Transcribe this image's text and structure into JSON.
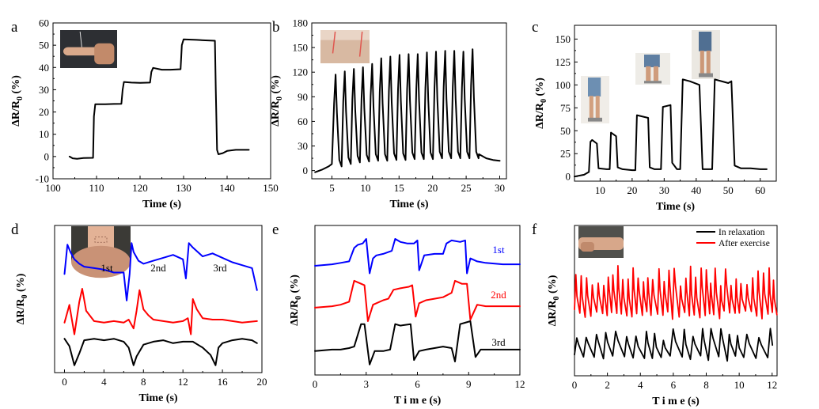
{
  "chart_data": [
    {
      "panel": "a",
      "type": "line",
      "xlabel": "Time (s)",
      "ylabel": "ΔR/R0 (%)",
      "xlim": [
        100,
        150
      ],
      "ylim": [
        -10,
        60
      ],
      "xticks": [
        100,
        110,
        120,
        130,
        140,
        150
      ],
      "yticks": [
        -10,
        0,
        10,
        20,
        30,
        40,
        50,
        60
      ],
      "grid": false,
      "inset_photo": "finger",
      "series": [
        {
          "color": "#000000",
          "x": [
            103.8,
            104.5,
            105.5,
            107,
            109.2,
            109.4,
            109.7,
            112,
            114,
            115.7,
            116,
            116.3,
            118,
            120,
            122.3,
            122.6,
            123,
            125,
            127,
            129.3,
            129.6,
            130,
            133,
            135,
            137.2,
            137.4,
            137.7,
            138,
            139,
            140,
            142,
            145
          ],
          "y": [
            0,
            -0.8,
            -1,
            -0.7,
            -0.6,
            18,
            23.5,
            23.5,
            23.6,
            23.7,
            30,
            33.5,
            33.2,
            33.1,
            33.2,
            38,
            39.8,
            39,
            39,
            39.2,
            50,
            52.6,
            52.4,
            52.2,
            52,
            30,
            3,
            1,
            1.5,
            2.5,
            3,
            3
          ]
        }
      ]
    },
    {
      "panel": "b",
      "type": "line",
      "xlabel": "Time (s)",
      "ylabel": "ΔR/R0 (%)",
      "xlim": [
        2,
        31
      ],
      "ylim": [
        -10,
        180
      ],
      "xticks": [
        5,
        10,
        15,
        20,
        25,
        30
      ],
      "yticks": [
        0,
        30,
        60,
        90,
        120,
        150,
        180
      ],
      "grid": false,
      "inset_photo": "wrist",
      "baseline": {
        "x": [
          2.5,
          3.5,
          4.5,
          5.0
        ],
        "y": [
          -2,
          1,
          5,
          8
        ]
      },
      "peaks": {
        "x": [
          5.55,
          6.91,
          8.27,
          9.63,
          10.99,
          12.35,
          13.71,
          15.07,
          16.43,
          17.79,
          19.15,
          20.51,
          21.87,
          23.23,
          24.59,
          25.95
        ],
        "y": [
          117,
          121,
          124,
          126,
          130,
          137,
          139,
          141,
          142,
          142,
          144,
          145,
          146,
          146,
          145,
          148
        ]
      },
      "troughs": [
        5,
        8,
        10,
        11,
        12,
        12,
        13,
        13,
        14,
        14,
        14,
        15,
        15,
        15,
        15,
        15
      ],
      "tail": {
        "x": [
          26.9,
          28,
          29,
          30
        ],
        "y": [
          20,
          15,
          13,
          12
        ]
      }
    },
    {
      "panel": "c",
      "type": "line",
      "xlabel": "Time (s)",
      "ylabel": "ΔR/R0 (%)",
      "xlim": [
        2,
        65
      ],
      "ylim": [
        -5,
        165
      ],
      "xticks": [
        10,
        20,
        30,
        40,
        50,
        60
      ],
      "yticks": [
        0,
        25,
        50,
        75,
        100,
        125,
        150
      ],
      "grid": false,
      "inset_photos": [
        "knee-bend-small",
        "knee-bend-medium",
        "knee-bend-large"
      ],
      "series": [
        {
          "color": "#000000",
          "x": [
            2,
            5,
            6.5,
            7,
            7.5,
            9,
            9.5,
            12,
            13,
            13.4,
            15,
            15.5,
            17,
            20,
            21,
            21.5,
            25,
            25.5,
            27,
            29,
            29.6,
            32,
            32.5,
            34,
            35,
            35.8,
            38,
            41,
            42,
            44,
            45,
            45.8,
            50,
            51,
            52,
            54,
            57,
            60,
            62
          ],
          "y": [
            0,
            2,
            5,
            38,
            40,
            36,
            9,
            8,
            8,
            48,
            44,
            10,
            8,
            7,
            7,
            67,
            64,
            10,
            8,
            8,
            76,
            78,
            15,
            8,
            8,
            106,
            104,
            100,
            8,
            8,
            8,
            106,
            102,
            104,
            12,
            9,
            9,
            8,
            8
          ]
        }
      ]
    },
    {
      "panel": "d",
      "type": "line",
      "xlabel": "Time (s)",
      "ylabel": "ΔR/R0 (%)",
      "xlim": [
        -1,
        20
      ],
      "ylim": [
        0,
        10
      ],
      "xticks": [
        0,
        4,
        8,
        12,
        16,
        20
      ],
      "yticks": [],
      "grid": false,
      "inset_photo": "throat",
      "annotations": [
        "1st",
        "2nd",
        "3rd"
      ],
      "series": [
        {
          "color": "#0000ff",
          "offset": 6.2,
          "x": [
            0,
            0.3,
            0.6,
            1,
            1.5,
            2,
            3,
            4,
            5,
            6,
            6.3,
            6.6,
            6.8,
            7,
            7.5,
            8,
            9,
            10,
            11,
            12,
            12.3,
            12.6,
            13,
            14,
            15,
            16,
            17,
            18,
            19,
            19.5
          ],
          "y": [
            0.5,
            2.5,
            2.0,
            1.5,
            1.2,
            1.0,
            0.9,
            0.8,
            0.6,
            0.6,
            -1.3,
            0.5,
            2.6,
            2.0,
            1.4,
            1.2,
            1.4,
            1.6,
            1.8,
            1.5,
            0.2,
            2.6,
            2.3,
            1.7,
            1.9,
            1.6,
            1.3,
            1.1,
            0.9,
            -0.6
          ]
        },
        {
          "color": "#ff0000",
          "offset": 3.4,
          "x": [
            0,
            0.5,
            1,
            1.5,
            1.8,
            2.2,
            3,
            4,
            5,
            6,
            6.5,
            7,
            7.3,
            7.6,
            8,
            8.5,
            9,
            10,
            11,
            12,
            12.5,
            12.8,
            13,
            13.4,
            14,
            15,
            16,
            17,
            18,
            19.5
          ],
          "y": [
            0,
            1.2,
            -0.8,
            1.4,
            2.3,
            0.8,
            0.1,
            0,
            0.1,
            0,
            0.2,
            -0.4,
            0.8,
            2.2,
            0.9,
            0.5,
            0.2,
            0.1,
            0,
            0.1,
            0.3,
            -0.8,
            1.6,
            0.9,
            0.3,
            0.2,
            0.2,
            0.1,
            0,
            0.1
          ]
        },
        {
          "color": "#000000",
          "offset": 1.5,
          "x": [
            0,
            0.5,
            1,
            1.5,
            2,
            3,
            4,
            5,
            6,
            6.5,
            7,
            7.3,
            8,
            9,
            10,
            11,
            12,
            13,
            14,
            14.8,
            15.3,
            15.6,
            16,
            17,
            18,
            19,
            19.5
          ],
          "y": [
            0.8,
            0.3,
            -1.0,
            -0.2,
            0.7,
            0.8,
            0.7,
            0.8,
            0.6,
            0.2,
            -1.0,
            -0.4,
            0.4,
            0.6,
            0.7,
            0.5,
            0.6,
            0.6,
            0.2,
            -0.3,
            -1.0,
            0.2,
            0.5,
            0.7,
            0.8,
            0.7,
            0.5
          ]
        }
      ]
    },
    {
      "panel": "e",
      "type": "line",
      "xlabel": "T i m e  (s)",
      "ylabel": "ΔR/R0 (%)",
      "xlim": [
        0,
        12
      ],
      "ylim": [
        0,
        10
      ],
      "xticks": [
        0,
        3,
        6,
        9,
        12
      ],
      "yticks": [],
      "grid": false,
      "annotations": [
        "1st",
        "2nd",
        "3rd"
      ],
      "series": [
        {
          "color": "#0000ff",
          "offset": 7.3,
          "x": [
            0,
            1,
            1.5,
            2,
            2.3,
            2.5,
            2.8,
            3.0,
            3.2,
            3.4,
            3.6,
            4,
            4.5,
            4.7,
            5,
            5.4,
            5.8,
            6.0,
            6.1,
            6.4,
            7,
            7.5,
            7.7,
            8,
            8.5,
            8.8,
            8.9,
            9.1,
            9.5,
            10,
            11,
            12
          ],
          "y": [
            0,
            0.1,
            0.2,
            0.3,
            1.2,
            1.4,
            1.5,
            1.8,
            -0.5,
            0.5,
            0.7,
            0.8,
            1.0,
            1.8,
            1.6,
            1.5,
            1.5,
            1.7,
            -0.3,
            0.7,
            0.8,
            0.8,
            1.5,
            1.7,
            1.6,
            1.7,
            -0.5,
            0.5,
            0.3,
            0.2,
            0.1,
            0.1
          ]
        },
        {
          "color": "#ff0000",
          "offset": 4.5,
          "x": [
            0,
            1,
            1.5,
            2,
            2.3,
            2.7,
            2.9,
            3.1,
            3.4,
            4,
            4.3,
            4.6,
            5,
            5.5,
            5.7,
            5.9,
            6.1,
            6.5,
            7,
            7.5,
            8,
            8.2,
            8.6,
            8.9,
            9.1,
            9.5,
            10,
            11,
            12
          ],
          "y": [
            0,
            0.1,
            0.2,
            0.4,
            1.8,
            1.6,
            1.5,
            -0.9,
            0.2,
            0.5,
            0.6,
            1.2,
            1.3,
            1.4,
            1.5,
            -0.6,
            0.3,
            0.5,
            0.6,
            0.7,
            1.0,
            1.8,
            1.6,
            1.6,
            -0.8,
            0.2,
            0.1,
            0.1,
            0.1
          ]
        },
        {
          "color": "#000000",
          "offset": 1.6,
          "x": [
            0,
            1,
            1.5,
            2,
            2.3,
            2.7,
            2.9,
            3.2,
            3.5,
            4,
            4.4,
            4.7,
            5,
            5.6,
            5.8,
            6.1,
            6.5,
            7.0,
            7.5,
            8,
            8.2,
            8.5,
            8.8,
            9.1,
            9.4,
            9.7,
            10,
            11,
            12
          ],
          "y": [
            0,
            0.1,
            0.1,
            0.2,
            0.3,
            1.8,
            1.8,
            -0.9,
            0,
            0,
            0.1,
            1.8,
            1.7,
            1.8,
            -0.6,
            0,
            0.1,
            0.2,
            0.3,
            0.2,
            -0.7,
            1.8,
            1.9,
            2.0,
            -0.4,
            0.1,
            0.1,
            0.1,
            0.1
          ]
        }
      ]
    },
    {
      "panel": "f",
      "type": "line",
      "xlabel": "T i m e  (s)",
      "ylabel": "ΔR/R0 (%)",
      "xlim": [
        0,
        12.3
      ],
      "ylim": [
        0,
        10
      ],
      "xticks": [
        0,
        2,
        4,
        6,
        8,
        10,
        12
      ],
      "yticks": [],
      "grid": false,
      "inset_photo": "wrist-pulse",
      "legend_position": "top-right",
      "series": [
        {
          "name": "In relaxation",
          "color": "#000000",
          "base": 1.4,
          "amp": 1.7,
          "period": 0.6,
          "seed": 3
        },
        {
          "name": "After exercise",
          "color": "#ff0000",
          "base": 4.4,
          "amp": 2.8,
          "period": 0.33,
          "seed": 7
        }
      ]
    }
  ]
}
